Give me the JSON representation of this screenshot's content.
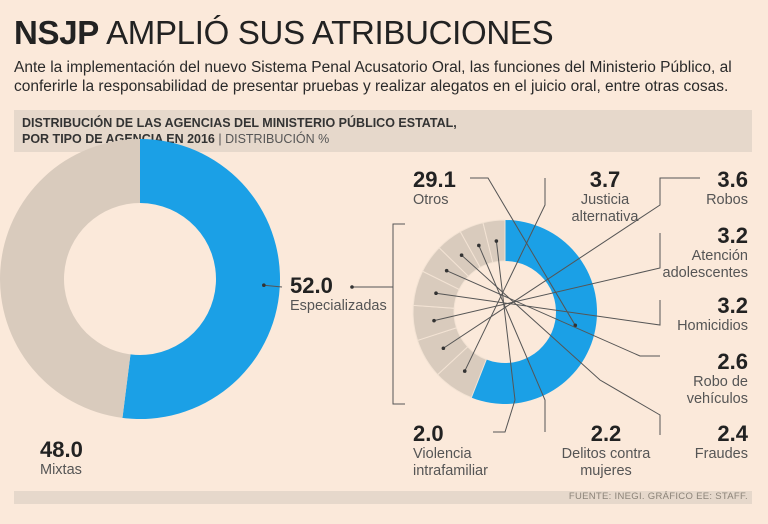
{
  "header": {
    "title_bold": "NSJP",
    "title_rest": " AMPLIÓ SUS ATRIBUCIONES",
    "subtitle": "Ante la implementación del nuevo Sistema Penal Acusatorio Oral, las funciones del Ministerio Público, al conferirle la responsabilidad de presentar pruebas y realizar alegatos en el juicio oral, entre otras cosas.",
    "band_line1": "DISTRIBUCIÓN DE LAS AGENCIAS DEL MINISTERIO PÚBLICO ESTATAL,",
    "band_line2": "POR TIPO DE AGENCIA EN 2016",
    "band_sep": " | ",
    "band_unit": "DISTRIBUCIÓN %"
  },
  "footer": {
    "source": "FUENTE: INEGI. GRÁFICO EE: STAFF."
  },
  "colors": {
    "blue": "#1ba0e6",
    "beige": "#d9cbbd",
    "line": "#555555",
    "background": "#fbe9da"
  },
  "chart_data": [
    {
      "type": "pie",
      "variant": "donut",
      "title": "Distribución por tipo de agencia",
      "categories": [
        "Especializadas",
        "Mixtas"
      ],
      "values": [
        52.0,
        48.0
      ],
      "value_labels": [
        "52.0",
        "48.0"
      ]
    },
    {
      "type": "pie",
      "variant": "donut",
      "title": "Especializadas",
      "categories": [
        "Otros",
        "Justicia alternativa",
        "Robos",
        "Atención adolescentes",
        "Homicidios",
        "Robo de vehículos",
        "Fraudes",
        "Delitos contra mujeres",
        "Violencia intrafamiliar"
      ],
      "values": [
        29.1,
        3.7,
        3.6,
        3.2,
        3.2,
        2.6,
        2.4,
        2.2,
        2.0
      ],
      "value_labels": [
        "29.1",
        "3.7",
        "3.6",
        "3.2",
        "3.2",
        "2.6",
        "2.4",
        "2.2",
        "2.0"
      ],
      "label_lines": [
        [
          "Otros"
        ],
        [
          "Justicia",
          "alternativa"
        ],
        [
          "Robos"
        ],
        [
          "Atención",
          "adolescentes"
        ],
        [
          "Homicidios"
        ],
        [
          "Robo de",
          "vehículos"
        ],
        [
          "Fraudes"
        ],
        [
          "Delitos contra",
          "mujeres"
        ],
        [
          "Violencia",
          "intrafamiliar"
        ]
      ]
    }
  ]
}
